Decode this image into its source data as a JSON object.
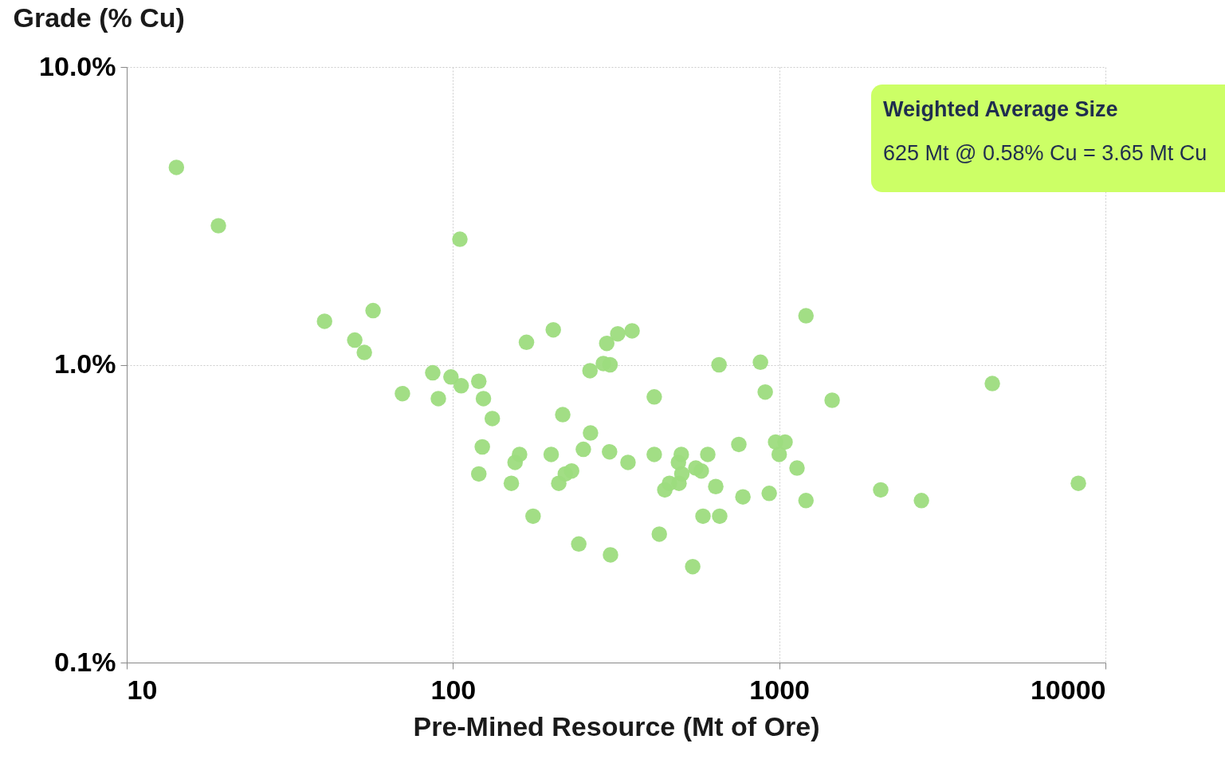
{
  "chart_data": {
    "type": "scatter",
    "ylabel": "Grade (% Cu)",
    "xlabel": "Pre-Mined Resource (Mt of Ore)",
    "log": "xy",
    "grid": true,
    "legend": false,
    "marker": "circle",
    "xlim": [
      10,
      10000
    ],
    "xticks": [
      10,
      100,
      1000,
      10000
    ],
    "ylim": [
      0.1,
      10
    ],
    "yticks": [
      {
        "value": 0.1,
        "label": "0.1%"
      },
      {
        "value": 1,
        "label": "1.0%"
      },
      {
        "value": 10,
        "label": "10.0%"
      }
    ],
    "annotations": [
      "Weighted Average Size",
      "625 Mt @ 0.58% Cu = 3.65 Mt Cu"
    ],
    "x": [
      14.2,
      19.1,
      105,
      40.4,
      56.9,
      50,
      53.5,
      70,
      86.7,
      90.2,
      98.6,
      106,
      120,
      124,
      132,
      123,
      120,
      151,
      155,
      160,
      168,
      176,
      203,
      200,
      217,
      211,
      221,
      231,
      243,
      251,
      263,
      264,
      289,
      296,
      303,
      302,
      304,
      320,
      344,
      354,
      414,
      414,
      429,
      446,
      461,
      491,
      493,
      501,
      503,
      543,
      555,
      577,
      584,
      604,
      639,
      654,
      657,
      752,
      774,
      876,
      906,
      932,
      975,
      1000,
      1042,
      1134,
      1208,
      1208,
      1453,
      2047,
      2729,
      4500,
      8260
    ],
    "series": [
      {
        "color": "#9ddc7e",
        "values": [
          4.6,
          2.93,
          2.64,
          1.4,
          1.52,
          1.21,
          1.1,
          0.8,
          0.94,
          0.77,
          0.91,
          0.85,
          0.88,
          0.77,
          0.66,
          0.53,
          0.43,
          0.4,
          0.47,
          0.5,
          1.19,
          0.31,
          1.31,
          0.5,
          0.68,
          0.4,
          0.43,
          0.44,
          0.25,
          0.52,
          0.955,
          0.59,
          1.01,
          1.18,
          1.0,
          0.51,
          0.23,
          1.27,
          0.47,
          1.3,
          0.78,
          0.5,
          0.27,
          0.38,
          0.4,
          0.47,
          0.4,
          0.5,
          0.43,
          0.21,
          0.45,
          0.44,
          0.31,
          0.5,
          0.39,
          1.0,
          0.31,
          0.54,
          0.36,
          1.02,
          0.81,
          0.37,
          0.55,
          0.5,
          0.55,
          0.45,
          1.46,
          0.35,
          0.76,
          0.38,
          0.35,
          0.865,
          0.4
        ]
      }
    ]
  }
}
